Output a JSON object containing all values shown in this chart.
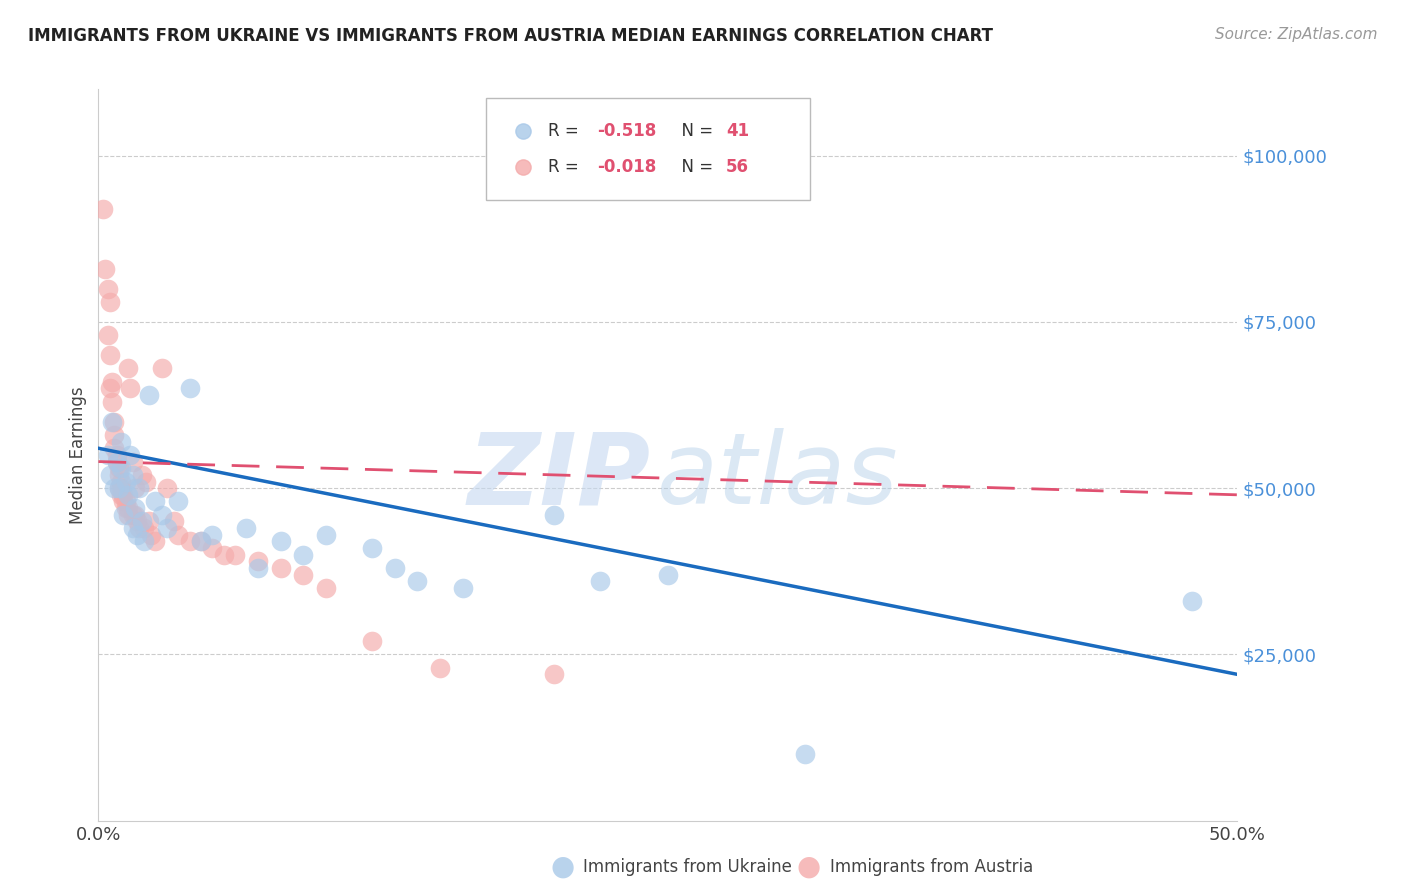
{
  "title": "IMMIGRANTS FROM UKRAINE VS IMMIGRANTS FROM AUSTRIA MEDIAN EARNINGS CORRELATION CHART",
  "source": "Source: ZipAtlas.com",
  "ylabel": "Median Earnings",
  "xlim": [
    0.0,
    0.5
  ],
  "ylim": [
    0,
    110000
  ],
  "yticks": [
    0,
    25000,
    50000,
    75000,
    100000
  ],
  "ytick_labels": [
    "",
    "$25,000",
    "$50,000",
    "$75,000",
    "$100,000"
  ],
  "xticks": [
    0.0,
    0.1,
    0.2,
    0.3,
    0.4,
    0.5
  ],
  "ukraine_R": -0.518,
  "ukraine_N": 41,
  "austria_R": -0.018,
  "austria_N": 56,
  "ukraine_color": "#a8c8e8",
  "ukraine_line_color": "#1a6bbf",
  "austria_color": "#f4aaaa",
  "austria_line_color": "#e05070",
  "ukraine_scatter_x": [
    0.004,
    0.005,
    0.006,
    0.007,
    0.008,
    0.009,
    0.01,
    0.01,
    0.011,
    0.012,
    0.013,
    0.014,
    0.015,
    0.015,
    0.016,
    0.017,
    0.018,
    0.019,
    0.02,
    0.022,
    0.025,
    0.028,
    0.03,
    0.035,
    0.04,
    0.045,
    0.05,
    0.065,
    0.07,
    0.08,
    0.09,
    0.1,
    0.12,
    0.13,
    0.14,
    0.16,
    0.2,
    0.22,
    0.25,
    0.31,
    0.48
  ],
  "ukraine_scatter_y": [
    55000,
    52000,
    60000,
    50000,
    54000,
    50000,
    57000,
    53000,
    46000,
    51000,
    49000,
    55000,
    44000,
    52000,
    47000,
    43000,
    50000,
    45000,
    42000,
    64000,
    48000,
    46000,
    44000,
    48000,
    65000,
    42000,
    43000,
    44000,
    38000,
    42000,
    40000,
    43000,
    41000,
    38000,
    36000,
    35000,
    46000,
    36000,
    37000,
    10000,
    33000
  ],
  "austria_scatter_x": [
    0.002,
    0.003,
    0.004,
    0.004,
    0.005,
    0.005,
    0.005,
    0.006,
    0.006,
    0.007,
    0.007,
    0.007,
    0.008,
    0.008,
    0.009,
    0.009,
    0.009,
    0.01,
    0.01,
    0.01,
    0.011,
    0.011,
    0.012,
    0.012,
    0.013,
    0.013,
    0.013,
    0.014,
    0.015,
    0.015,
    0.016,
    0.016,
    0.017,
    0.018,
    0.019,
    0.02,
    0.021,
    0.022,
    0.023,
    0.025,
    0.028,
    0.03,
    0.033,
    0.035,
    0.04,
    0.045,
    0.05,
    0.055,
    0.06,
    0.07,
    0.08,
    0.09,
    0.1,
    0.12,
    0.15,
    0.2
  ],
  "austria_scatter_y": [
    92000,
    83000,
    80000,
    73000,
    78000,
    70000,
    65000,
    66000,
    63000,
    60000,
    58000,
    56000,
    55000,
    54000,
    53000,
    52000,
    50000,
    51000,
    50000,
    49000,
    49000,
    48000,
    48000,
    47000,
    47000,
    68000,
    46000,
    65000,
    54000,
    46000,
    50000,
    46000,
    45000,
    44000,
    52000,
    44000,
    51000,
    45000,
    43000,
    42000,
    68000,
    50000,
    45000,
    43000,
    42000,
    42000,
    41000,
    40000,
    40000,
    39000,
    38000,
    37000,
    35000,
    27000,
    23000,
    22000
  ],
  "watermark_zip": "ZIP",
  "watermark_atlas": "atlas",
  "background_color": "#ffffff",
  "grid_color": "#cccccc",
  "title_color": "#222222",
  "right_axis_color": "#4a90d9",
  "legend_ukraine_label": "Immigrants from Ukraine",
  "legend_austria_label": "Immigrants from Austria"
}
